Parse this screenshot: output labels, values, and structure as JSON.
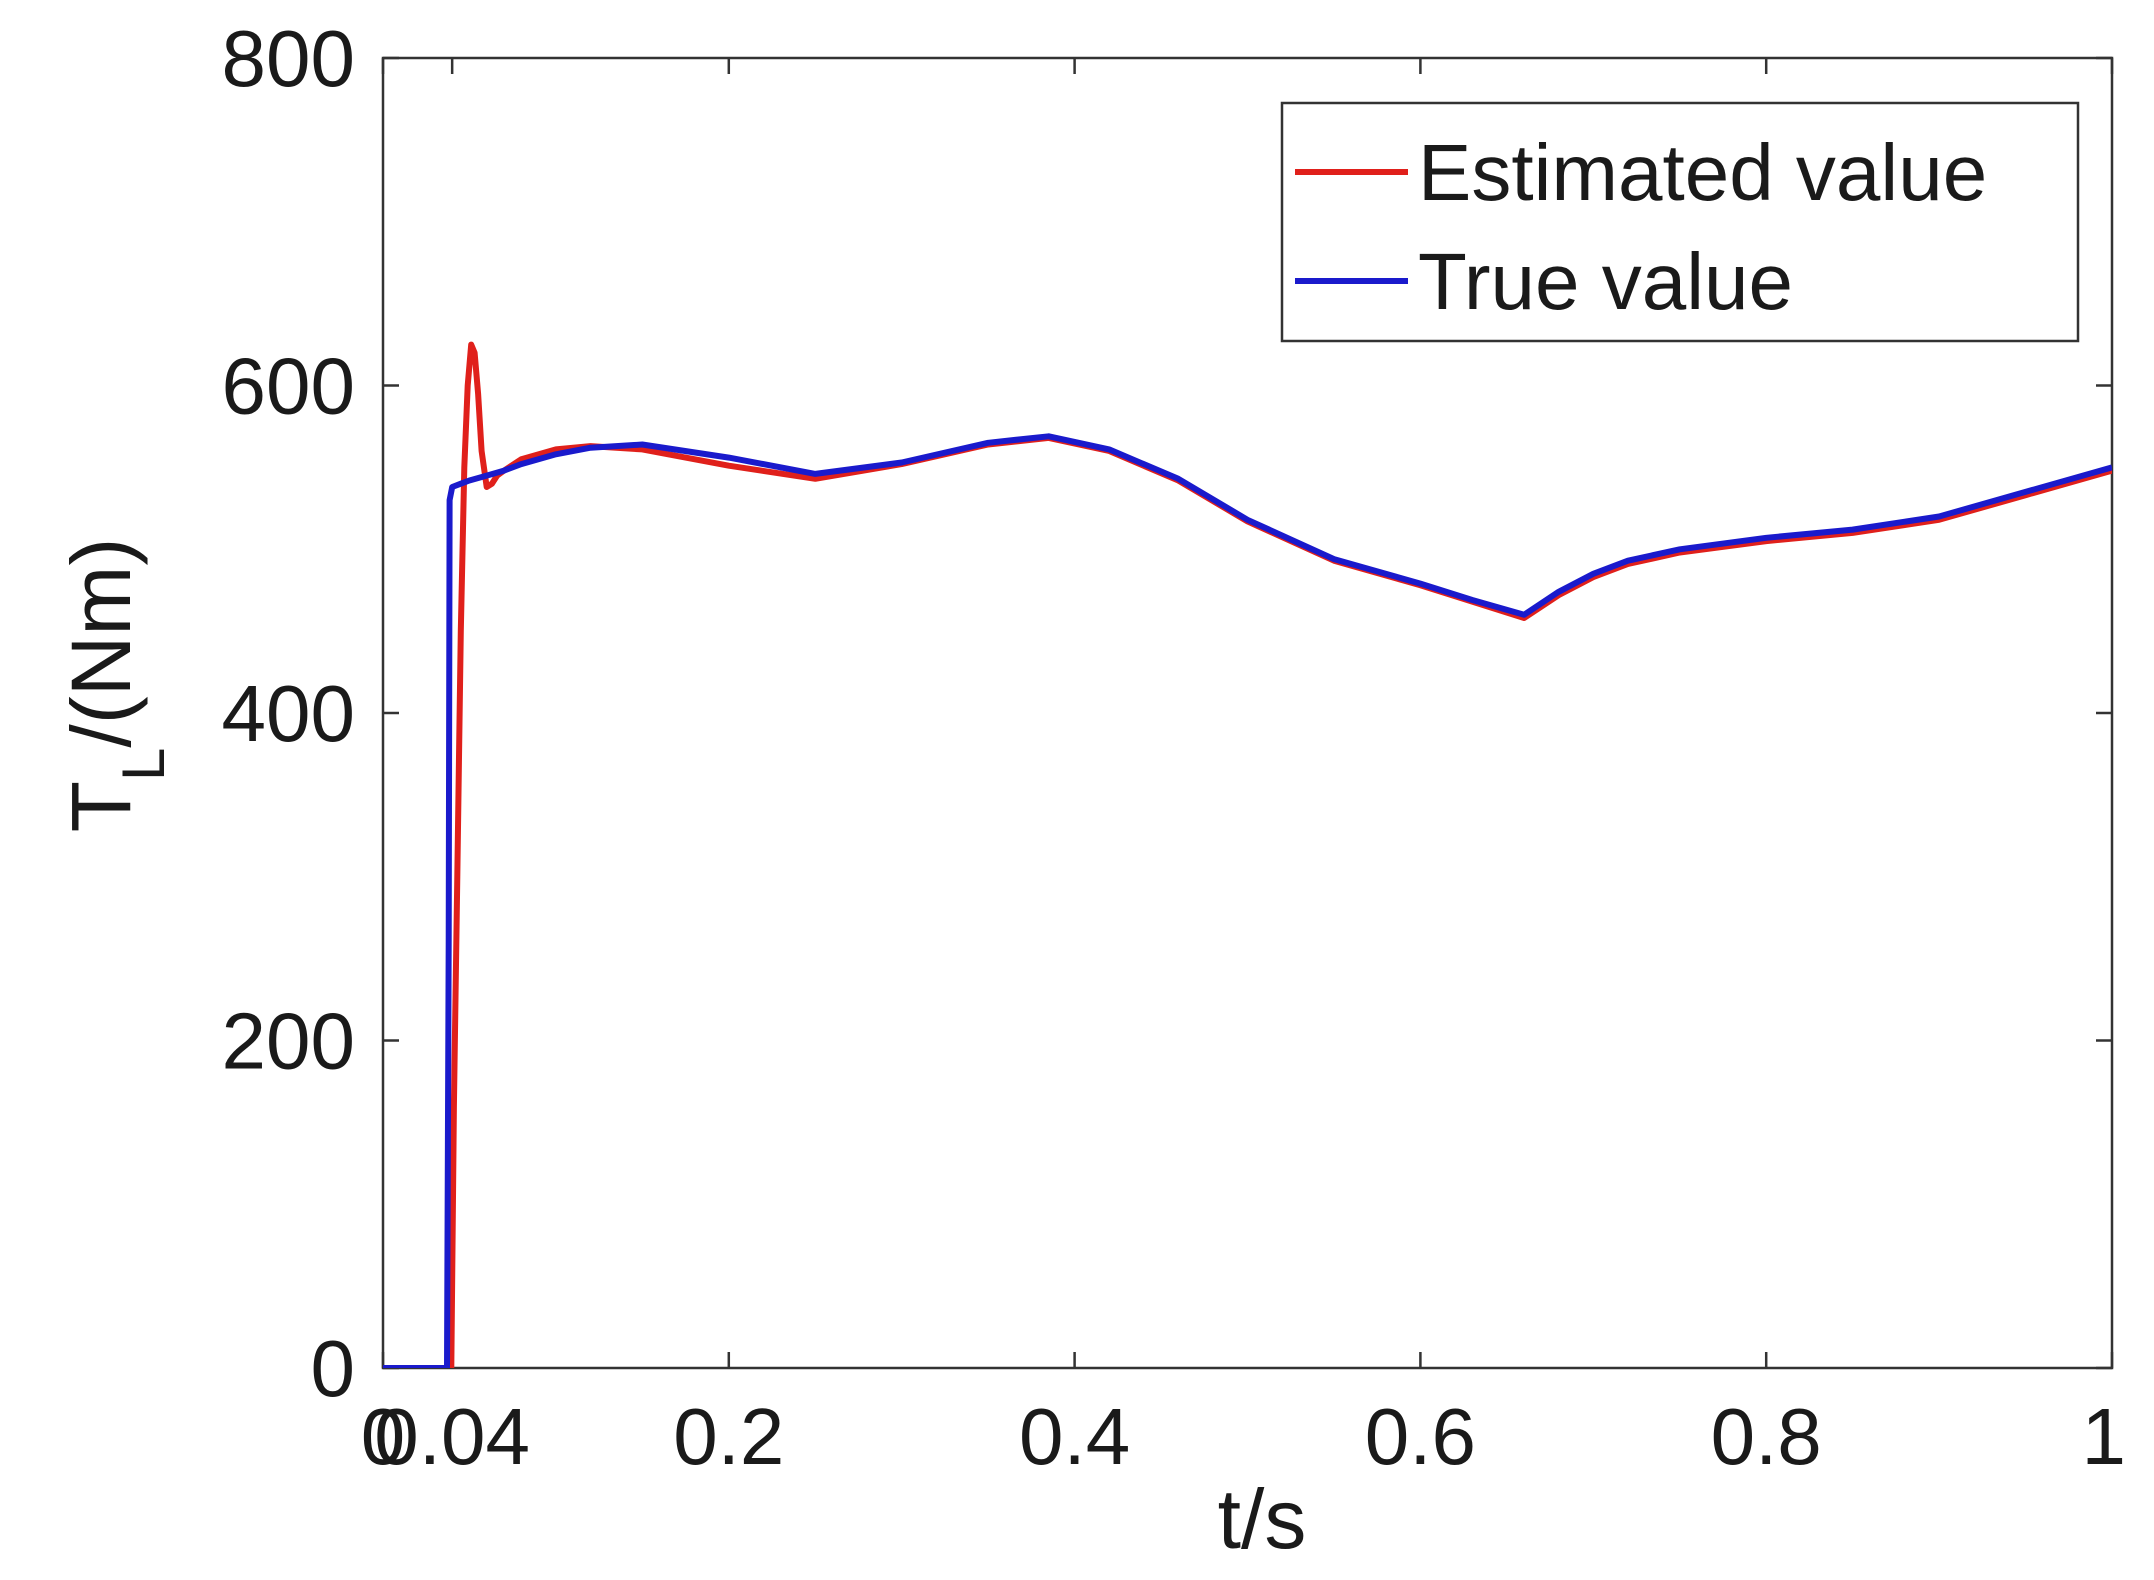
{
  "chart_data": {
    "type": "line",
    "title": "",
    "xlabel": "t/s",
    "ylabel_main": "T",
    "ylabel_sub": "L",
    "ylabel_unit": "/(Nm)",
    "xlim": [
      0,
      1
    ],
    "ylim": [
      0,
      800
    ],
    "xticks": [
      0,
      0.04,
      0.2,
      0.4,
      0.6,
      0.8,
      1
    ],
    "xtick_labels": [
      "0",
      "0.04",
      "0.2",
      "0.4",
      "0.6",
      "0.8",
      "1"
    ],
    "yticks": [
      0,
      200,
      400,
      600,
      800
    ],
    "ytick_labels": [
      "0",
      "200",
      "400",
      "600",
      "800"
    ],
    "grid": false,
    "legend_position": "top-right",
    "series": [
      {
        "name": "Estimated value",
        "color": "#e0201b",
        "x": [
          0,
          0.038,
          0.0395,
          0.041,
          0.043,
          0.045,
          0.047,
          0.049,
          0.051,
          0.053,
          0.055,
          0.057,
          0.06,
          0.063,
          0.066,
          0.07,
          0.08,
          0.1,
          0.12,
          0.15,
          0.2,
          0.25,
          0.3,
          0.35,
          0.385,
          0.42,
          0.46,
          0.5,
          0.55,
          0.6,
          0.63,
          0.66,
          0.68,
          0.7,
          0.72,
          0.75,
          0.8,
          0.85,
          0.9,
          0.95,
          1.0
        ],
        "y": [
          0,
          0,
          0,
          160,
          300,
          450,
          550,
          600,
          625,
          620,
          595,
          560,
          538,
          540,
          545,
          548,
          555,
          561,
          563,
          561,
          551,
          543,
          552,
          564,
          568,
          560,
          542,
          517,
          493,
          478,
          468,
          458,
          472,
          483,
          491,
          498,
          505,
          510,
          518,
          533,
          548
        ]
      },
      {
        "name": "True value",
        "color": "#1a1acc",
        "x": [
          0,
          0.037,
          0.038,
          0.0385,
          0.04,
          0.045,
          0.05,
          0.06,
          0.07,
          0.08,
          0.1,
          0.12,
          0.15,
          0.2,
          0.25,
          0.3,
          0.35,
          0.385,
          0.42,
          0.46,
          0.5,
          0.55,
          0.6,
          0.63,
          0.66,
          0.68,
          0.7,
          0.72,
          0.75,
          0.8,
          0.85,
          0.9,
          0.95,
          1.0
        ],
        "y": [
          0,
          0,
          260,
          530,
          538,
          540,
          542,
          545,
          548,
          552,
          558,
          562,
          564,
          556,
          546,
          553,
          565,
          569,
          561,
          543,
          518,
          494,
          479,
          469,
          460,
          474,
          485,
          493,
          500,
          507,
          512,
          520,
          535,
          550
        ]
      }
    ]
  }
}
